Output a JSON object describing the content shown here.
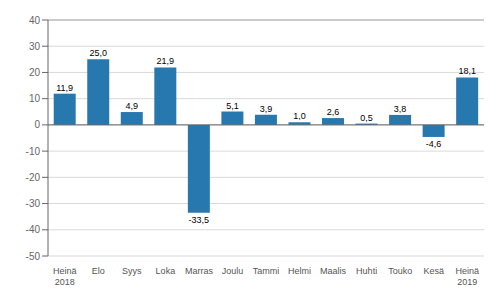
{
  "chart_data": {
    "type": "bar",
    "categories": [
      "Heinä\n2018",
      "Elo",
      "Syys",
      "Loka",
      "Marras",
      "Joulu",
      "Tammi",
      "Helmi",
      "Maalis",
      "Huhti",
      "Touko",
      "Kesä",
      "Heinä\n2019"
    ],
    "values": [
      11.9,
      25.0,
      4.9,
      21.9,
      -33.5,
      5.1,
      3.9,
      1.0,
      2.6,
      0.5,
      3.8,
      -4.6,
      18.1
    ],
    "value_labels": [
      "11,9",
      "25,0",
      "4,9",
      "21,9",
      "-33,5",
      "5,1",
      "3,9",
      "1,0",
      "2,6",
      "0,5",
      "3,8",
      "-4,6",
      "18,1"
    ],
    "data_labels": true,
    "color": "#2878b0",
    "ylim": [
      -50,
      40
    ],
    "yticks": [
      -50,
      -40,
      -30,
      -20,
      -10,
      0,
      10,
      20,
      30,
      40
    ],
    "grid": true
  }
}
